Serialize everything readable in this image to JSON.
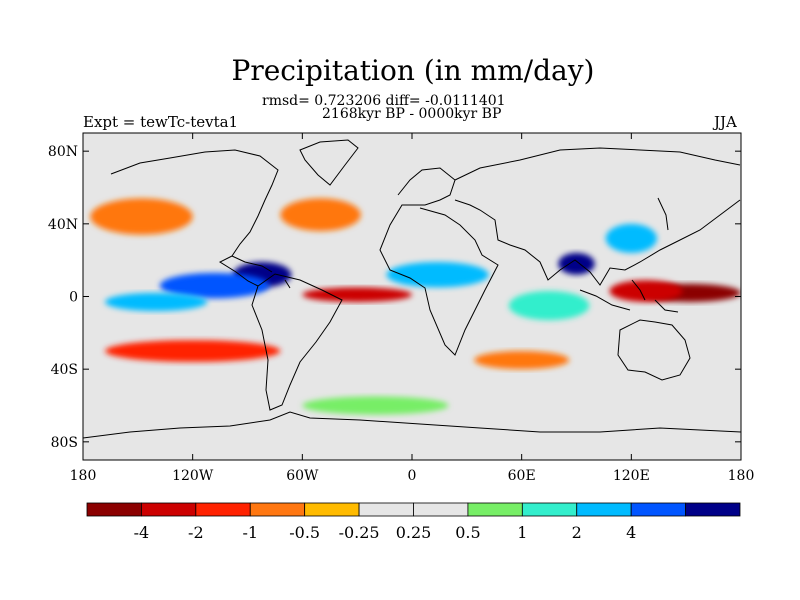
{
  "title": "Precipitation (in mm/day)",
  "stats": "rmsd= 0.723206 diff= -0.0111401",
  "period": "2168kyr BP - 0000kyr BP",
  "experiment": "Expt = tewTc-tevta1",
  "season": "JJA",
  "map": {
    "lon_range": [
      -180,
      180
    ],
    "lat_range": [
      -90,
      90
    ],
    "x_ticks": [
      {
        "lon": -180,
        "label": "180"
      },
      {
        "lon": -120,
        "label": "120W"
      },
      {
        "lon": -60,
        "label": "60W"
      },
      {
        "lon": 0,
        "label": "0"
      },
      {
        "lon": 60,
        "label": "60E"
      },
      {
        "lon": 120,
        "label": "120E"
      },
      {
        "lon": 180,
        "label": "180"
      }
    ],
    "y_ticks": [
      {
        "lat": 80,
        "label": "80N"
      },
      {
        "lat": 40,
        "label": "40N"
      },
      {
        "lat": 0,
        "label": "0"
      },
      {
        "lat": -40,
        "label": "40S"
      },
      {
        "lat": -80,
        "label": "80S"
      }
    ]
  },
  "colorbar": {
    "colors": [
      "#8b0000",
      "#cc0000",
      "#ff2200",
      "#ff7711",
      "#ffbb00",
      "#e6e6e6",
      "#e6e6e6",
      "#77ee66",
      "#33eecc",
      "#00bbff",
      "#0055ff",
      "#000088"
    ],
    "labels": [
      "-4",
      "-2",
      "-1",
      "-0.5",
      "-0.25",
      "0.25",
      "0.5",
      "1",
      "2",
      "4"
    ]
  },
  "anomaly_regions": [
    {
      "name": "Central America Caribbean wet",
      "lon": -82,
      "lat": 12,
      "rlon": 16,
      "rlat": 7,
      "level": 11
    },
    {
      "name": "East Pacific ITCZ wet",
      "lon": -108,
      "lat": 6,
      "rlon": 30,
      "rlat": 7,
      "level": 10
    },
    {
      "name": "Central Pacific wet",
      "lon": -140,
      "lat": -3,
      "rlon": 28,
      "rlat": 5,
      "level": 9
    },
    {
      "name": "West Pacific dry",
      "lon": 152,
      "lat": 2,
      "rlon": 28,
      "rlat": 5,
      "level": 0
    },
    {
      "name": "Maritime Continent dry",
      "lon": 128,
      "lat": 3,
      "rlon": 20,
      "rlat": 6,
      "level": 1
    },
    {
      "name": "Atlantic ITCZ dry",
      "lon": -30,
      "lat": 1,
      "rlon": 30,
      "rlat": 4,
      "level": 1
    },
    {
      "name": "South Pacific band dry",
      "lon": -120,
      "lat": -30,
      "rlon": 48,
      "rlat": 6,
      "level": 2
    },
    {
      "name": "North Pacific dry",
      "lon": -148,
      "lat": 44,
      "rlon": 28,
      "rlat": 10,
      "level": 3
    },
    {
      "name": "West Africa wet",
      "lon": 14,
      "lat": 12,
      "rlon": 28,
      "rlat": 7,
      "level": 9
    },
    {
      "name": "Bay of Bengal wet",
      "lon": 90,
      "lat": 18,
      "rlon": 10,
      "rlat": 6,
      "level": 11
    },
    {
      "name": "Indian Ocean wet",
      "lon": 75,
      "lat": -5,
      "rlon": 22,
      "rlat": 8,
      "level": 8
    },
    {
      "name": "Southern Indian Ocean dry",
      "lon": 60,
      "lat": -35,
      "rlon": 26,
      "rlat": 5,
      "level": 3
    },
    {
      "name": "Southern Ocean wet",
      "lon": -20,
      "lat": -60,
      "rlon": 40,
      "rlat": 5,
      "level": 7
    },
    {
      "name": "North Atlantic dry",
      "lon": -50,
      "lat": 45,
      "rlon": 22,
      "rlat": 9,
      "level": 3
    },
    {
      "name": "East Asia wet",
      "lon": 120,
      "lat": 32,
      "rlon": 14,
      "rlat": 8,
      "level": 9
    }
  ]
}
